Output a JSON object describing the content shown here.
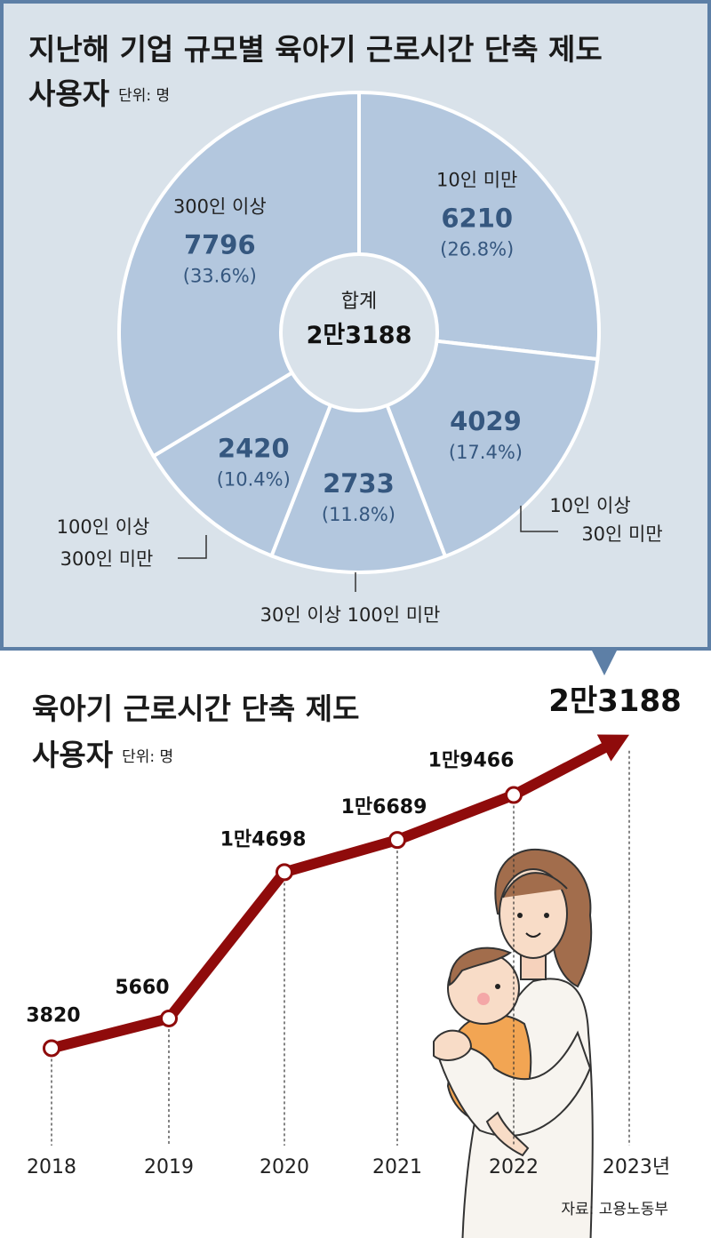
{
  "pie": {
    "title_line1": "지난해 기업 규모별 육아기 근로시간 단축 제도",
    "title_line2": "사용자",
    "unit": "단위: 명",
    "center_label": "합계",
    "center_value": "2만3188",
    "slices": [
      {
        "label": "10인 미만",
        "value_text": "6210",
        "percent_text": "(26.8%)"
      },
      {
        "label": "10인 이상 30인 미만",
        "label_line1": "10인 이상",
        "label_line2": "30인 미만",
        "value_text": "4029",
        "percent_text": "(17.4%)"
      },
      {
        "label": "30인 이상 100인 미만",
        "value_text": "2733",
        "percent_text": "(11.8%)"
      },
      {
        "label": "100인 이상 300인 미만",
        "label_line1": "100인 이상",
        "label_line2": "300인 미만",
        "value_text": "2420",
        "percent_text": "(10.4%)"
      },
      {
        "label": "300인 이상",
        "value_text": "7796",
        "percent_text": "(33.6%)"
      }
    ]
  },
  "line": {
    "title_line1": "육아기 근로시간 단축 제도",
    "title_line2": "사용자",
    "unit": "단위: 명",
    "points": [
      {
        "year": "2018",
        "label": "3820"
      },
      {
        "year": "2019",
        "label": "5660"
      },
      {
        "year": "2020",
        "label": "1만4698"
      },
      {
        "year": "2021",
        "label": "1만6689"
      },
      {
        "year": "2022",
        "label": "1만9466"
      },
      {
        "year": "2023년",
        "label": "2만3188"
      }
    ]
  },
  "chart_data": [
    {
      "type": "pie",
      "title": "지난해 기업 규모별 육아기 근로시간 단축 제도 사용자",
      "unit": "명",
      "total": 23188,
      "categories": [
        "10인 미만",
        "10인 이상 30인 미만",
        "30인 이상 100인 미만",
        "100인 이상 300인 미만",
        "300인 이상"
      ],
      "values": [
        6210,
        4029,
        2733,
        2420,
        7796
      ],
      "percents": [
        26.8,
        17.4,
        11.8,
        10.4,
        33.6
      ]
    },
    {
      "type": "line",
      "title": "육아기 근로시간 단축 제도 사용자",
      "unit": "명",
      "x": [
        "2018",
        "2019",
        "2020",
        "2021",
        "2022",
        "2023"
      ],
      "values": [
        3820,
        5660,
        14698,
        16689,
        19466,
        23188
      ]
    }
  ],
  "colors": {
    "panel_bg": "#d9e2ea",
    "panel_border": "#5d7fa6",
    "slice_fill": "#b3c7de",
    "slice_text": "#35577f",
    "line": "#8f0b0b"
  },
  "illustration": "mother-holding-baby",
  "source": "자료: 고용노동부"
}
